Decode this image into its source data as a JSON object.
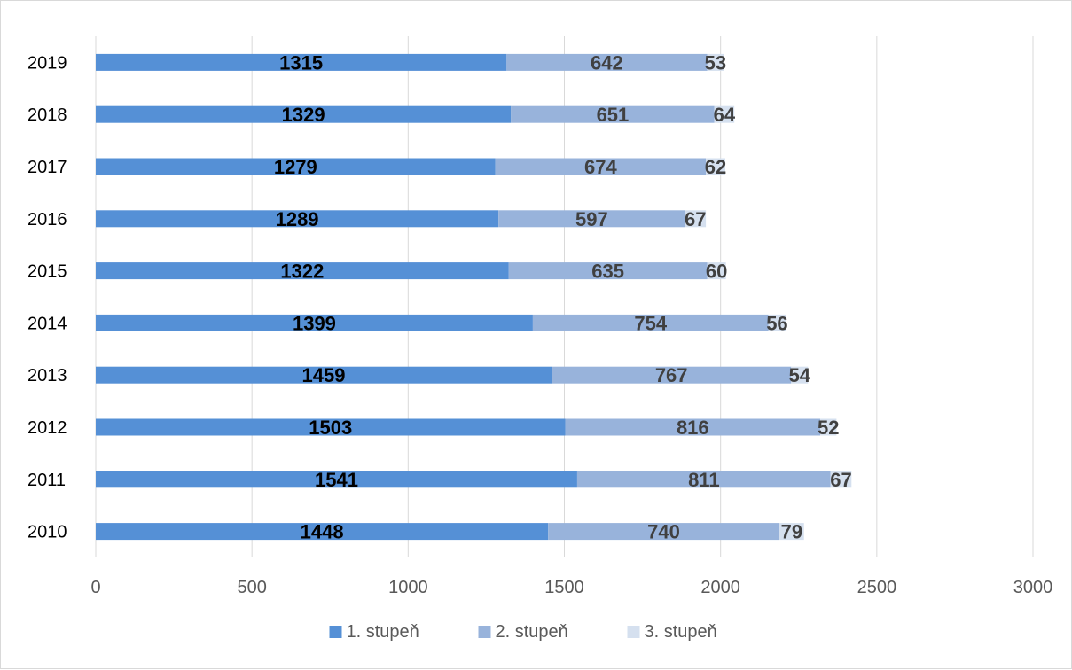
{
  "chart_data": {
    "type": "bar",
    "orientation": "horizontal",
    "stacked": true,
    "title": "",
    "xlabel": "",
    "ylabel": "",
    "categories": [
      "2010",
      "2011",
      "2012",
      "2013",
      "2014",
      "2015",
      "2016",
      "2017",
      "2018",
      "2019"
    ],
    "xlim": [
      0,
      3000
    ],
    "x_ticks": [
      "0",
      "500",
      "1000",
      "1500",
      "2000",
      "2500",
      "3000"
    ],
    "grid": "vertical",
    "legend_position": "bottom",
    "series": [
      {
        "name": "1. stupeň",
        "color": "#5590d6",
        "label_color": "#000000",
        "values": [
          1448,
          1541,
          1503,
          1459,
          1399,
          1322,
          1289,
          1279,
          1329,
          1315
        ]
      },
      {
        "name": "2. stupeň",
        "color": "#98b3db",
        "label_color": "#404040",
        "values": [
          740,
          811,
          816,
          767,
          754,
          635,
          597,
          674,
          651,
          642
        ]
      },
      {
        "name": "3. stupeň",
        "color": "#d5e0ef",
        "label_color": "#404040",
        "values": [
          79,
          67,
          52,
          54,
          56,
          60,
          67,
          62,
          64,
          53
        ]
      }
    ]
  }
}
